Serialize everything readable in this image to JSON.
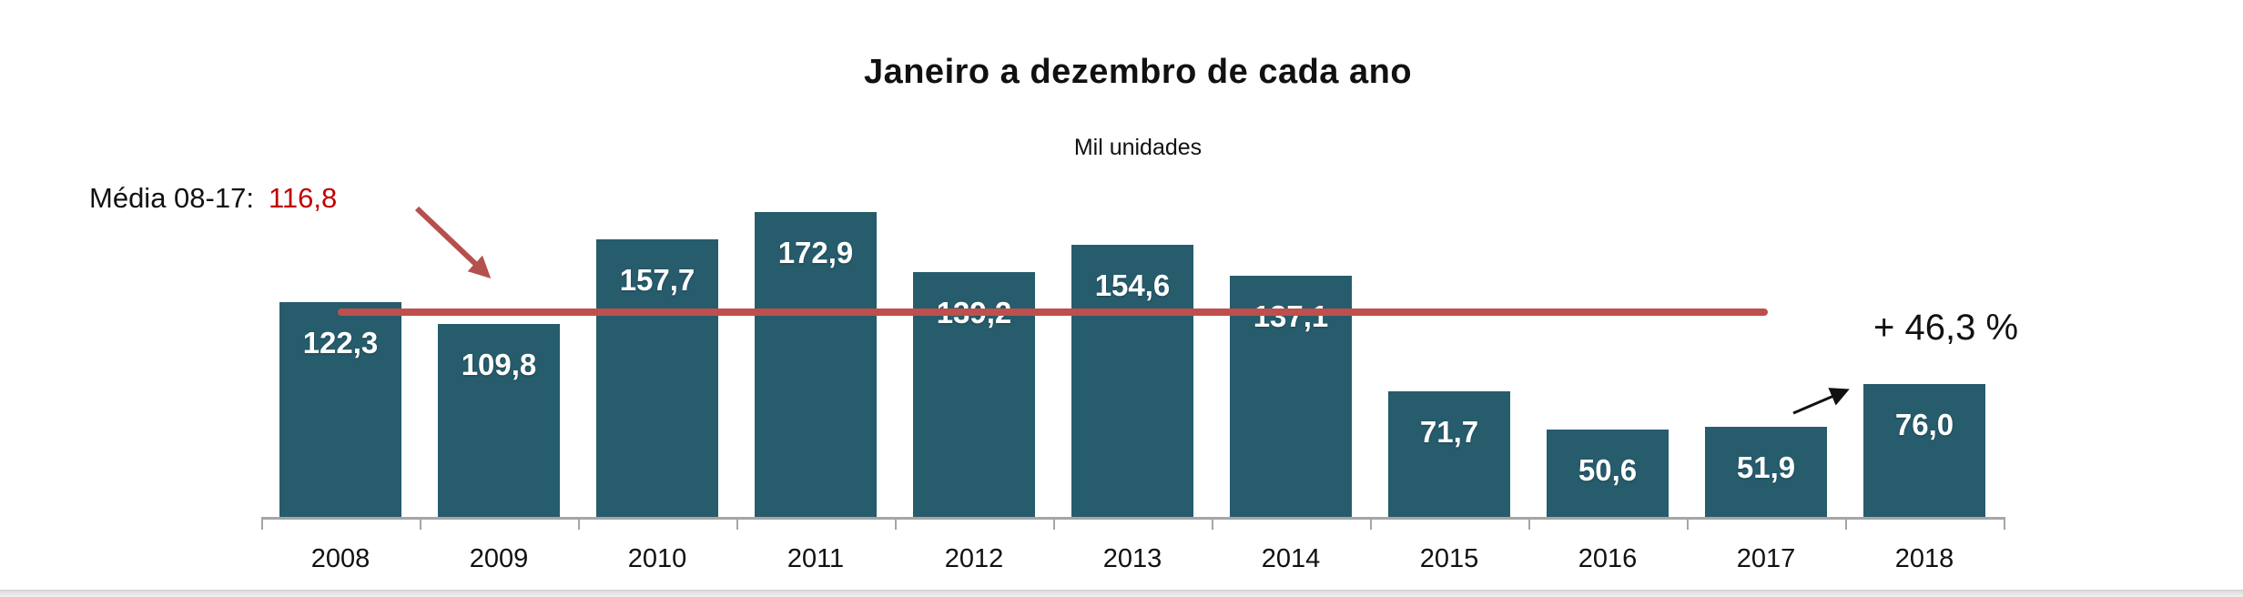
{
  "chart_data": {
    "type": "bar",
    "title": "Janeiro a dezembro de cada ano",
    "subtitle": "Mil unidades",
    "xlabel": "",
    "ylabel": "Mil unidades",
    "ylim": [
      0,
      185
    ],
    "grid": false,
    "legend": false,
    "categories": [
      "2008",
      "2009",
      "2010",
      "2011",
      "2012",
      "2013",
      "2014",
      "2015",
      "2016",
      "2017",
      "2018"
    ],
    "values": [
      122.3,
      109.8,
      157.7,
      172.9,
      139.2,
      154.6,
      137.1,
      71.7,
      50.6,
      51.9,
      76.0
    ],
    "value_labels": [
      "122,3",
      "109,8",
      "157,7",
      "172,9",
      "139,2",
      "154,6",
      "137,1",
      "71,7",
      "50,6",
      "51,9",
      "76,0"
    ],
    "bar_color": "#265c6c",
    "bar_label_color": "#ffffff",
    "mean_line": {
      "label_prefix": "Média 08-17:",
      "value_label": "116,8",
      "value": 116.8,
      "line_color": "#bf4f4d",
      "value_text_color": "#c00000",
      "arrow_color": "#b5504d"
    },
    "growth_annotation": {
      "text": "+ 46,3 %",
      "from_category": "2017",
      "to_category": "2018",
      "arrow_color": "#111111"
    },
    "axis_color": "#a6a6a6"
  }
}
